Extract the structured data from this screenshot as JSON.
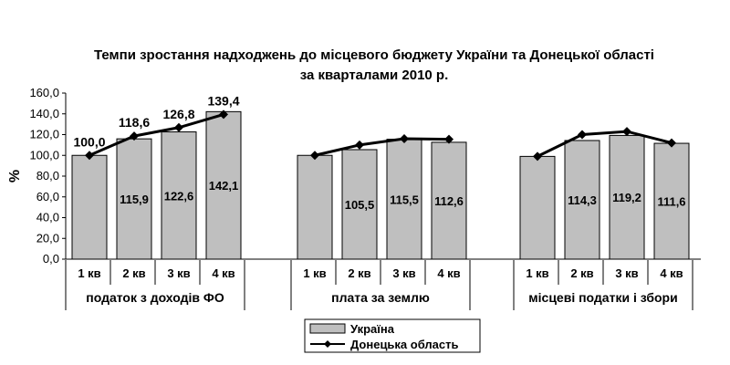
{
  "chart_data": {
    "type": "bar",
    "title_line1": "Темпи зростання надходжень до місцевого бюджету України та Донецької області",
    "title_line2": "за кварталами 2010 р.",
    "ylabel": "%",
    "ylim": [
      0,
      160
    ],
    "yticks": [
      "0,0",
      "20,0",
      "40,0",
      "60,0",
      "80,0",
      "100,0",
      "120,0",
      "140,0",
      "160,0"
    ],
    "ytick_values": [
      0,
      20,
      40,
      60,
      80,
      100,
      120,
      140,
      160
    ],
    "grid": false,
    "legend_position": "bottom-center",
    "groups": [
      {
        "name": "податок з доходів ФО",
        "categories": [
          "1 кв",
          "2 кв",
          "3 кв",
          "4 кв"
        ],
        "bar_values": [
          100,
          115.9,
          122.6,
          142.1
        ],
        "bar_labels": [
          "",
          "115,9",
          "122,6",
          "142,1"
        ],
        "line_values": [
          100.0,
          118.6,
          126.8,
          139.4
        ],
        "line_labels": [
          "100,0",
          "118,6",
          "126,8",
          "139,4"
        ]
      },
      {
        "name": "плата за землю",
        "categories": [
          "1 кв",
          "2 кв",
          "3 кв",
          "4 кв"
        ],
        "bar_values": [
          100,
          105.5,
          115.5,
          112.6
        ],
        "bar_labels": [
          "",
          "105,5",
          "115,5",
          "112,6"
        ],
        "line_values": [
          100,
          110,
          116,
          115.5
        ],
        "line_labels": [
          "",
          "",
          "",
          ""
        ]
      },
      {
        "name": "місцеві податки і збори",
        "categories": [
          "1 кв",
          "2 кв",
          "3 кв",
          "4 кв"
        ],
        "bar_values": [
          99,
          114.3,
          119.2,
          111.6
        ],
        "bar_labels": [
          "",
          "114,3",
          "119,2",
          "111,6"
        ],
        "line_values": [
          99,
          120,
          123,
          112
        ],
        "line_labels": [
          "",
          "",
          "",
          ""
        ]
      }
    ],
    "series": [
      {
        "name": "Україна",
        "kind": "bar",
        "color": "#bfbfbf"
      },
      {
        "name": "Донецька область",
        "kind": "line",
        "color": "#000000"
      }
    ]
  }
}
